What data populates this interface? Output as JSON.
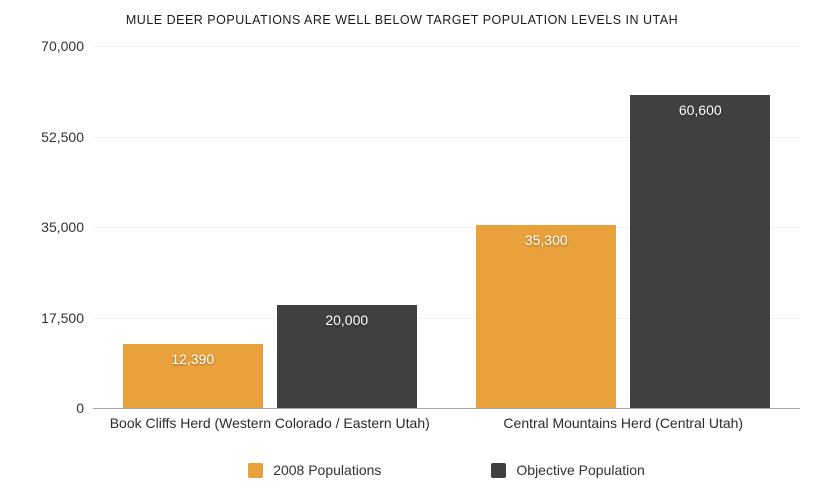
{
  "chart_data": {
    "type": "bar",
    "title": "MULE DEER POPULATIONS ARE WELL BELOW TARGET POPULATION LEVELS IN UTAH",
    "categories": [
      "Book Cliffs Herd (Western Colorado / Eastern Utah)",
      "Central Mountains Herd (Central Utah)"
    ],
    "series": [
      {
        "name": "2008 Populations",
        "color": "#E9A13C",
        "values": [
          12390,
          35300
        ],
        "value_labels": [
          "12,390",
          "35,300"
        ]
      },
      {
        "name": "Objective Population",
        "color": "#404040",
        "values": [
          20000,
          60600
        ],
        "value_labels": [
          "20,000",
          "60,600"
        ]
      }
    ],
    "ylim": [
      0,
      70000
    ],
    "yticks": [
      0,
      17500,
      35000,
      52500,
      70000
    ],
    "ytick_labels": [
      "0",
      "17,500",
      "35,000",
      "52,500",
      "70,000"
    ],
    "grid": true,
    "legend_position": "bottom",
    "colors": {
      "grid": "#F2F2F2",
      "axis": "#A6A6A6",
      "tick_text": "#333333",
      "category_text": "#2B2B2B",
      "title_text": "#1A1A1A",
      "value_label_text": "#FFFFFF",
      "background": "#FFFFFF"
    }
  }
}
